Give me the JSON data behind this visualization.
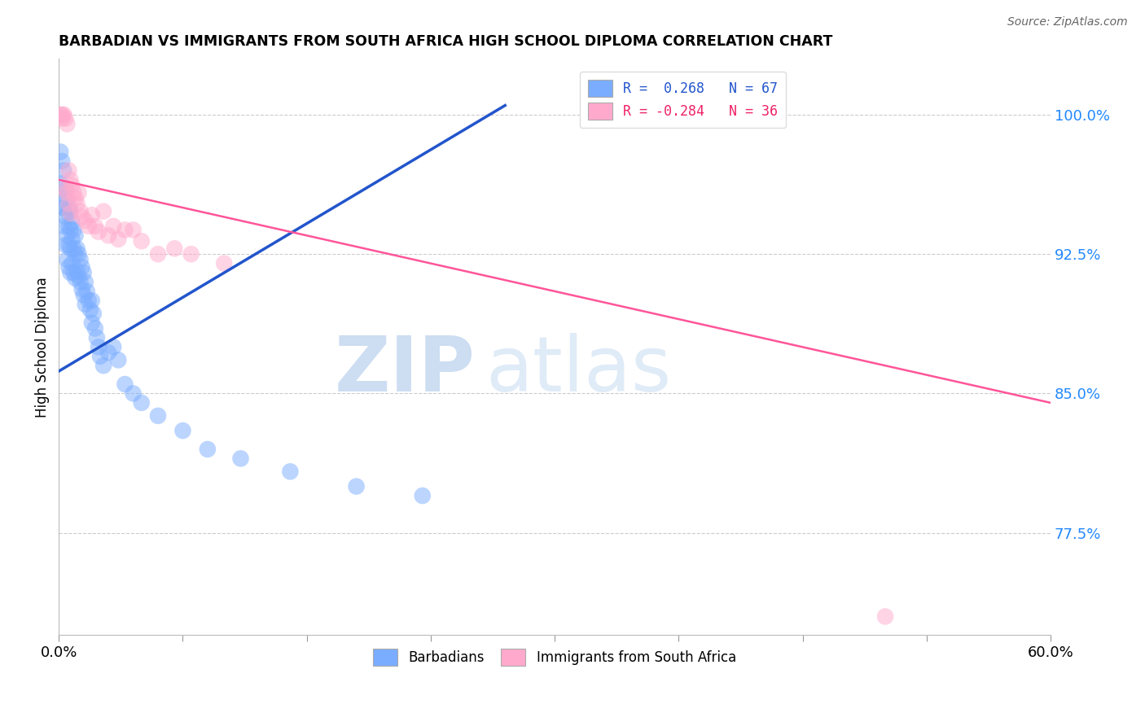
{
  "title": "BARBADIAN VS IMMIGRANTS FROM SOUTH AFRICA HIGH SCHOOL DIPLOMA CORRELATION CHART",
  "source": "Source: ZipAtlas.com",
  "ylabel": "High School Diploma",
  "ytick_labels": [
    "100.0%",
    "92.5%",
    "85.0%",
    "77.5%"
  ],
  "ytick_values": [
    1.0,
    0.925,
    0.85,
    0.775
  ],
  "xmin": 0.0,
  "xmax": 0.6,
  "ymin": 0.72,
  "ymax": 1.03,
  "legend_r1": "R =  0.268   N = 67",
  "legend_r2": "R = -0.284   N = 36",
  "blue_color": "#7aadff",
  "pink_color": "#ffaacc",
  "blue_line_color": "#2255cc",
  "pink_line_color": "#ff5599",
  "watermark_zip": "ZIP",
  "watermark_atlas": "atlas",
  "blue_line_x0": 0.0,
  "blue_line_x1": 0.27,
  "blue_line_y0": 0.862,
  "blue_line_y1": 1.005,
  "pink_line_x0": 0.0,
  "pink_line_x1": 0.6,
  "pink_line_y0": 0.965,
  "pink_line_y1": 0.845,
  "blue_x": [
    0.001,
    0.001,
    0.002,
    0.002,
    0.003,
    0.003,
    0.003,
    0.004,
    0.004,
    0.004,
    0.005,
    0.005,
    0.005,
    0.005,
    0.006,
    0.006,
    0.006,
    0.006,
    0.007,
    0.007,
    0.007,
    0.007,
    0.008,
    0.008,
    0.008,
    0.009,
    0.009,
    0.009,
    0.01,
    0.01,
    0.01,
    0.011,
    0.011,
    0.012,
    0.012,
    0.013,
    0.013,
    0.014,
    0.014,
    0.015,
    0.015,
    0.016,
    0.016,
    0.017,
    0.018,
    0.019,
    0.02,
    0.02,
    0.021,
    0.022,
    0.023,
    0.024,
    0.025,
    0.027,
    0.03,
    0.033,
    0.036,
    0.04,
    0.045,
    0.05,
    0.06,
    0.075,
    0.09,
    0.11,
    0.14,
    0.18,
    0.22
  ],
  "blue_y": [
    0.98,
    0.963,
    0.975,
    0.955,
    0.97,
    0.95,
    0.94,
    0.96,
    0.945,
    0.93,
    0.955,
    0.948,
    0.935,
    0.922,
    0.95,
    0.94,
    0.93,
    0.918,
    0.948,
    0.938,
    0.928,
    0.915,
    0.942,
    0.933,
    0.92,
    0.938,
    0.928,
    0.915,
    0.935,
    0.925,
    0.912,
    0.928,
    0.916,
    0.925,
    0.913,
    0.922,
    0.91,
    0.918,
    0.906,
    0.915,
    0.903,
    0.91,
    0.898,
    0.905,
    0.9,
    0.895,
    0.9,
    0.888,
    0.893,
    0.885,
    0.88,
    0.875,
    0.87,
    0.865,
    0.872,
    0.875,
    0.868,
    0.855,
    0.85,
    0.845,
    0.838,
    0.83,
    0.82,
    0.815,
    0.808,
    0.8,
    0.795
  ],
  "pink_x": [
    0.001,
    0.002,
    0.002,
    0.003,
    0.004,
    0.004,
    0.005,
    0.005,
    0.006,
    0.006,
    0.007,
    0.007,
    0.008,
    0.009,
    0.01,
    0.011,
    0.012,
    0.013,
    0.014,
    0.016,
    0.018,
    0.02,
    0.022,
    0.024,
    0.027,
    0.03,
    0.033,
    0.036,
    0.04,
    0.045,
    0.05,
    0.06,
    0.07,
    0.08,
    0.1,
    0.5
  ],
  "pink_y": [
    1.0,
    1.0,
    0.998,
    1.0,
    0.998,
    0.96,
    0.995,
    0.958,
    0.97,
    0.952,
    0.965,
    0.947,
    0.962,
    0.958,
    0.955,
    0.952,
    0.958,
    0.948,
    0.945,
    0.943,
    0.94,
    0.946,
    0.94,
    0.937,
    0.948,
    0.935,
    0.94,
    0.933,
    0.938,
    0.938,
    0.932,
    0.925,
    0.928,
    0.925,
    0.92,
    0.73
  ]
}
